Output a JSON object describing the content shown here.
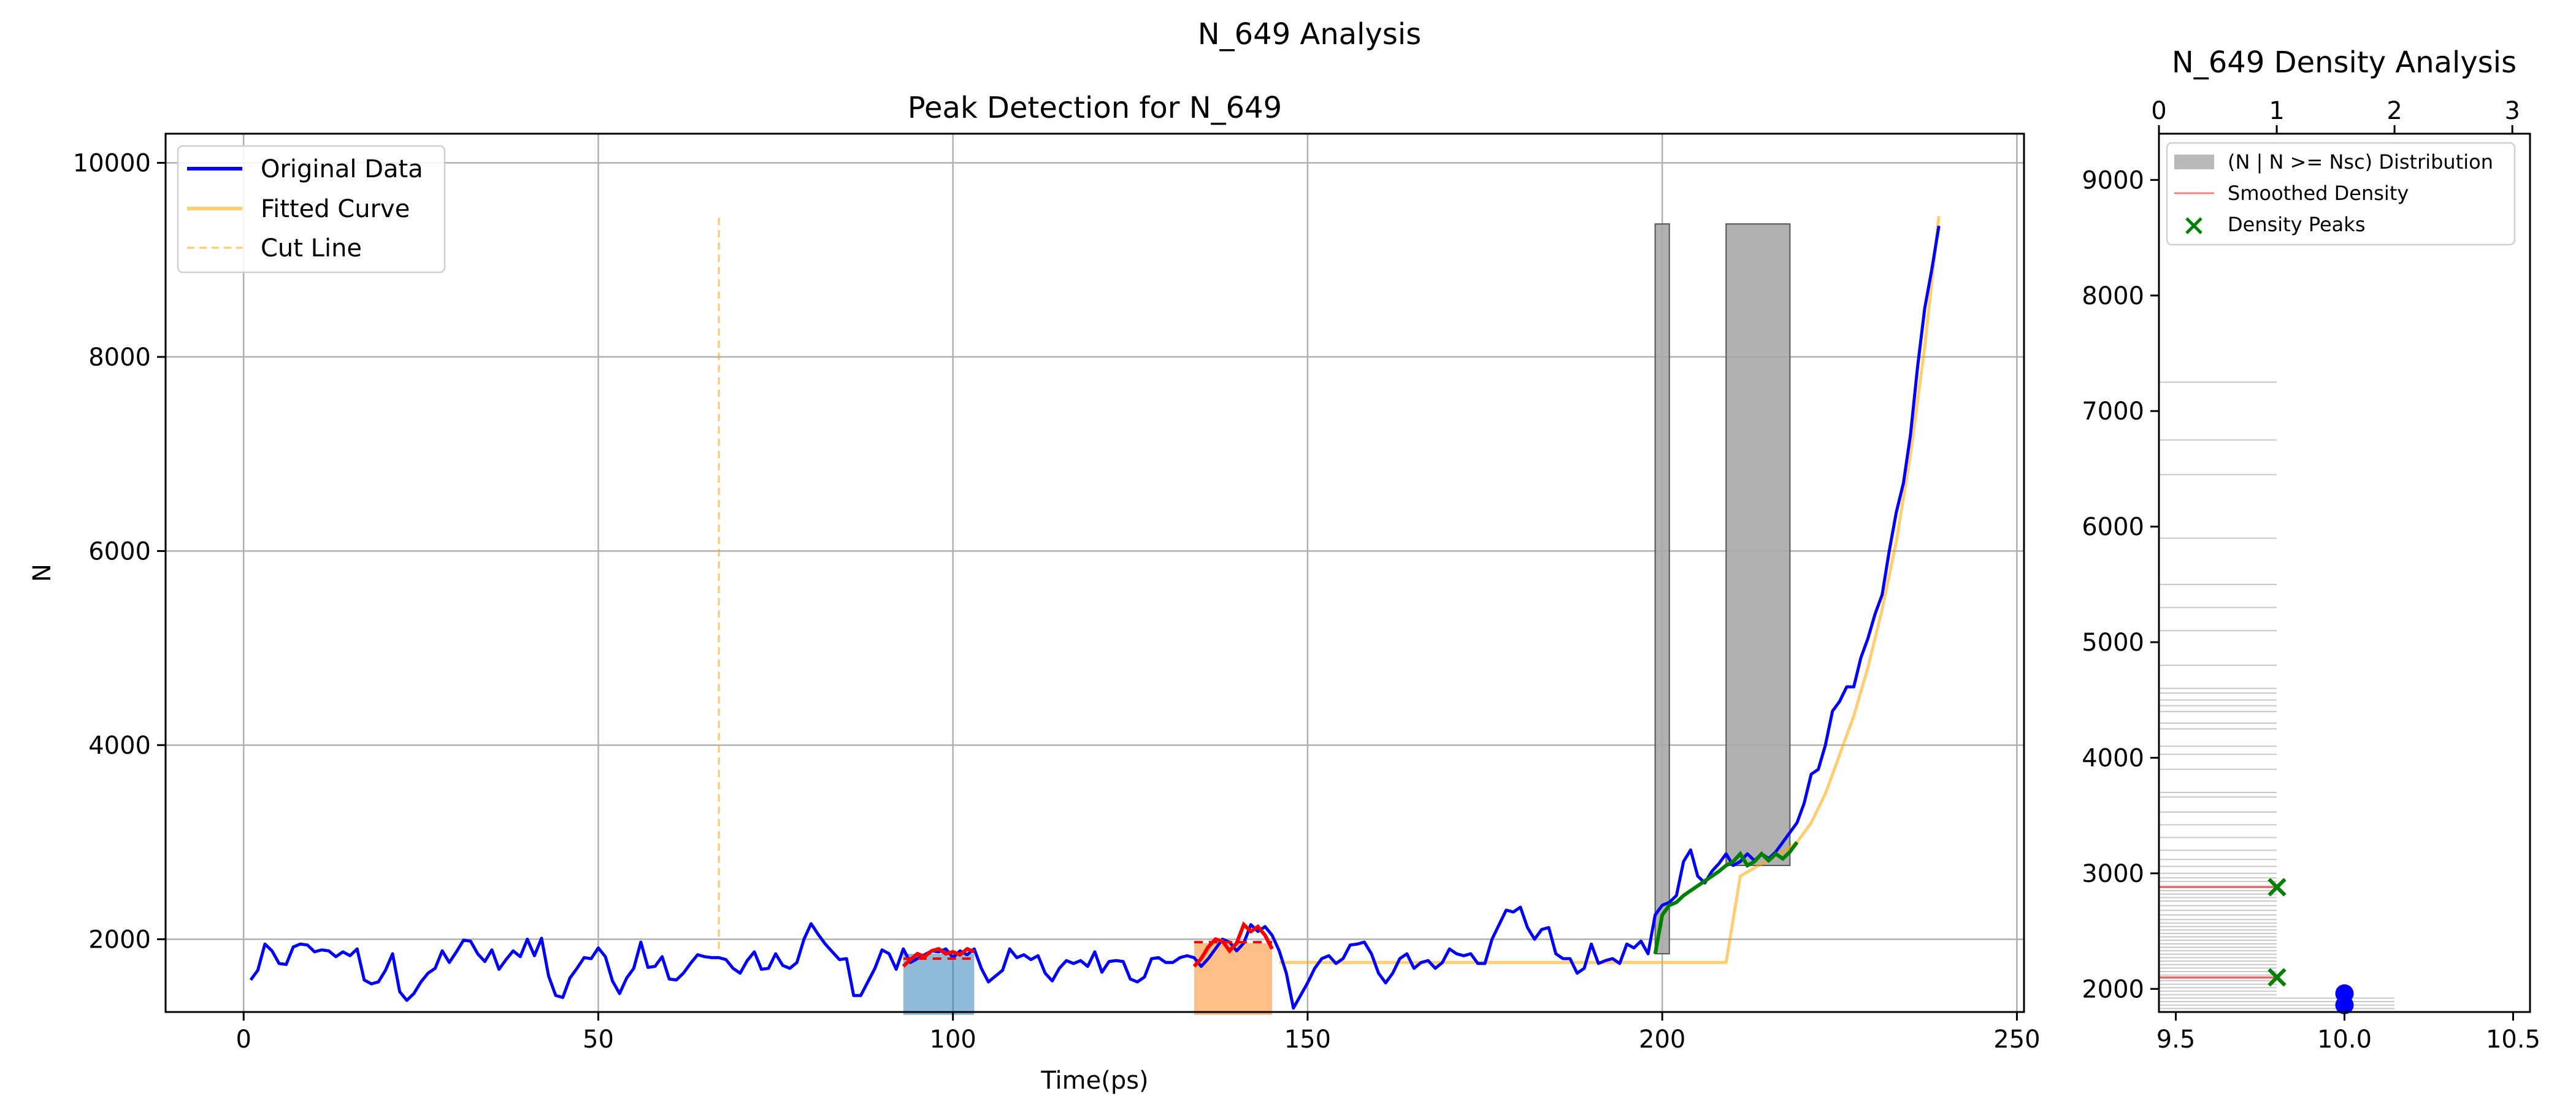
{
  "figure": {
    "suptitle": "N_649 Analysis"
  },
  "colors": {
    "original": "#0000ff",
    "fitted": "#ffa500",
    "cut": "#ffa500",
    "peak": "#ff0000",
    "rise": "#008000",
    "hist": "#a9a9a9",
    "shade1": "#1f77b4",
    "shade2": "#ff7f0e",
    "grid": "#b0b0b0"
  },
  "chart_data": [
    {
      "type": "line",
      "title": "Peak Detection for N_649",
      "xlabel": "Time(ps)",
      "ylabel": "N",
      "xlim": [
        -11,
        251
      ],
      "ylim": [
        1250,
        10300
      ],
      "xticks": [
        0,
        50,
        100,
        150,
        200,
        250
      ],
      "yticks": [
        2000,
        4000,
        6000,
        8000,
        10000
      ],
      "grid": true,
      "legend": {
        "placement": "upper-left",
        "entries": [
          "Original Data",
          "Fitted Curve",
          "Cut Line"
        ]
      },
      "series": [
        {
          "name": "Original Data",
          "x": [
            1,
            2,
            3,
            4,
            5,
            6,
            7,
            8,
            9,
            10,
            11,
            12,
            13,
            14,
            15,
            16,
            17,
            18,
            19,
            20,
            21,
            22,
            23,
            24,
            25,
            26,
            27,
            28,
            29,
            30,
            31,
            32,
            33,
            34,
            35,
            36,
            37,
            38,
            39,
            40,
            41,
            42,
            43,
            44,
            45,
            46,
            47,
            48,
            49,
            50,
            51,
            52,
            53,
            54,
            55,
            56,
            57,
            58,
            59,
            60,
            61,
            62,
            63,
            64,
            65,
            66,
            67,
            68,
            69,
            70,
            71,
            72,
            73,
            74,
            75,
            76,
            77,
            78,
            79,
            80,
            81,
            82,
            83,
            84,
            85,
            86,
            87,
            88,
            89,
            90,
            91,
            92,
            93,
            94,
            95,
            96,
            97,
            98,
            99,
            100,
            101,
            102,
            103,
            104,
            105,
            106,
            107,
            108,
            109,
            110,
            111,
            112,
            113,
            114,
            115,
            116,
            117,
            118,
            119,
            120,
            121,
            122,
            123,
            124,
            125,
            126,
            127,
            128,
            129,
            130,
            131,
            132,
            133,
            134,
            135,
            136,
            137,
            138,
            139,
            140,
            141,
            142,
            143,
            144,
            145,
            146,
            147,
            148,
            149,
            150,
            151,
            152,
            153,
            154,
            155,
            156,
            157,
            158,
            159,
            160,
            161,
            162,
            163,
            164,
            165,
            166,
            167,
            168,
            169,
            170,
            171,
            172,
            173,
            174,
            175,
            176,
            177,
            178,
            179,
            180,
            181,
            182,
            183,
            184,
            185,
            186,
            187,
            188,
            189,
            190,
            191,
            192,
            193,
            194,
            195,
            196,
            197,
            198,
            199,
            200,
            201,
            202,
            203,
            204,
            205,
            206,
            207,
            208,
            209,
            210,
            211,
            212,
            213,
            214,
            215,
            216,
            217,
            218,
            219,
            220,
            221,
            222,
            223,
            224,
            225,
            226,
            227,
            228,
            229,
            230,
            231,
            232,
            233,
            234,
            235,
            236,
            237,
            238,
            239
          ],
          "y": [
            1580,
            1680,
            1950,
            1880,
            1750,
            1740,
            1920,
            1950,
            1940,
            1870,
            1890,
            1880,
            1820,
            1870,
            1830,
            1900,
            1580,
            1540,
            1560,
            1680,
            1850,
            1460,
            1370,
            1440,
            1560,
            1650,
            1700,
            1880,
            1760,
            1870,
            1990,
            1980,
            1850,
            1770,
            1890,
            1690,
            1790,
            1880,
            1820,
            2000,
            1830,
            2010,
            1620,
            1420,
            1400,
            1600,
            1700,
            1810,
            1800,
            1910,
            1820,
            1570,
            1440,
            1600,
            1700,
            1970,
            1710,
            1720,
            1820,
            1590,
            1580,
            1650,
            1750,
            1840,
            1820,
            1810,
            1810,
            1790,
            1700,
            1650,
            1780,
            1870,
            1690,
            1700,
            1850,
            1730,
            1700,
            1760,
            2000,
            2160,
            2050,
            1950,
            1870,
            1790,
            1800,
            1420,
            1420,
            1560,
            1700,
            1890,
            1850,
            1690,
            1900,
            1760,
            1800,
            1840,
            1880,
            1870,
            1900,
            1810,
            1880,
            1840,
            1900,
            1700,
            1560,
            1620,
            1680,
            1900,
            1810,
            1840,
            1790,
            1830,
            1650,
            1570,
            1700,
            1780,
            1750,
            1780,
            1720,
            1870,
            1660,
            1770,
            1780,
            1770,
            1590,
            1560,
            1610,
            1800,
            1810,
            1760,
            1760,
            1810,
            1830,
            1810,
            1720,
            1800,
            1900,
            2000,
            1970,
            1880,
            1960,
            2150,
            2080,
            2130,
            2040,
            1880,
            1650,
            1290,
            1420,
            1550,
            1700,
            1800,
            1830,
            1750,
            1800,
            1940,
            1950,
            1970,
            1850,
            1650,
            1550,
            1650,
            1800,
            1850,
            1700,
            1760,
            1780,
            1700,
            1760,
            1900,
            1850,
            1830,
            1850,
            1750,
            1750,
            2000,
            2150,
            2300,
            2280,
            2330,
            2120,
            2000,
            2100,
            2120,
            1850,
            1800,
            1800,
            1650,
            1700,
            1950,
            1750,
            1780,
            1800,
            1750,
            1950,
            1910,
            1980,
            1850,
            2250,
            2350,
            2380,
            2450,
            2800,
            2920,
            2650,
            2580,
            2700,
            2780,
            2880,
            2760,
            2800,
            2880,
            2810,
            2880,
            2830,
            2900,
            3000,
            3100,
            3200,
            3400,
            3700,
            3750,
            4000,
            4350,
            4450,
            4600,
            4600,
            4900,
            5100,
            5350,
            5550,
            6000,
            6400,
            6700,
            7200,
            7900,
            8500,
            8900,
            9350
          ]
        },
        {
          "name": "Fitted Curve",
          "x": [
            146,
            209,
            211,
            215,
            217,
            219,
            221,
            223,
            225,
            227,
            229,
            231,
            233,
            235,
            237,
            239
          ],
          "y": [
            1760,
            1760,
            2650,
            2820,
            2900,
            3000,
            3200,
            3500,
            3900,
            4300,
            4800,
            5400,
            6100,
            7000,
            8100,
            9450
          ]
        },
        {
          "name": "Cut Line",
          "x": [
            67,
            67
          ],
          "y": [
            1900,
            9450
          ]
        },
        {
          "name": "",
          "role": "detected peak 1",
          "x": [
            93,
            94,
            95,
            96,
            97,
            98,
            99,
            100,
            101,
            102,
            103
          ],
          "y": [
            1720,
            1790,
            1850,
            1820,
            1880,
            1900,
            1850,
            1870,
            1840,
            1900,
            1870
          ],
          "level": 1800
        },
        {
          "name": "",
          "role": "detected peak 2",
          "x": [
            134,
            135,
            136,
            137,
            138,
            139,
            140,
            141,
            142,
            143,
            144,
            145
          ],
          "y": [
            1720,
            1800,
            1920,
            2000,
            1980,
            1880,
            1960,
            2150,
            2080,
            2130,
            2040,
            1900
          ],
          "level": 1970
        },
        {
          "name": "",
          "role": "rise segment",
          "x": [
            199,
            200,
            201,
            202,
            203,
            204,
            205,
            206,
            207,
            208,
            209,
            210,
            211,
            212,
            213,
            214,
            215,
            216,
            217,
            218,
            219
          ],
          "y": [
            1850,
            2250,
            2350,
            2380,
            2450,
            2500,
            2550,
            2600,
            2650,
            2700,
            2760,
            2800,
            2880,
            2760,
            2800,
            2880,
            2810,
            2880,
            2830,
            2900,
            3000
          ]
        }
      ],
      "spans": [
        {
          "role": "peak region 1",
          "x0": 93,
          "x1": 103,
          "y0": 1220,
          "y1": 1850
        },
        {
          "role": "peak region 2",
          "x0": 134,
          "x1": 145,
          "y0": 1220,
          "y1": 1960
        }
      ],
      "bars": [
        {
          "x0": 199,
          "x1": 201,
          "y0": 1850,
          "y1": 9370
        },
        {
          "x0": 209,
          "x1": 218,
          "y0": 2760,
          "y1": 9370
        }
      ]
    },
    {
      "type": "histogram",
      "title": "N_649 Density Analysis",
      "xlim": [
        9.45,
        10.55
      ],
      "xticks": [
        9.5,
        10.0,
        10.5
      ],
      "top_xlim": [
        0,
        3.15
      ],
      "top_xticks": [
        0,
        1,
        2,
        3
      ],
      "ylim": [
        1800,
        9400
      ],
      "yticks": [
        2000,
        3000,
        4000,
        5000,
        6000,
        7000,
        8000,
        9000
      ],
      "legend": {
        "placement": "upper-left",
        "entries": [
          "(N | N >= Nsc) Distribution",
          "Smoothed Density",
          "Density Peaks"
        ]
      },
      "hist_lines": [
        1830,
        1860,
        1890,
        1920,
        1950,
        1980,
        2010,
        2040,
        2070,
        2090,
        2120,
        2150,
        2180,
        2210,
        2240,
        2270,
        2300,
        2330,
        2360,
        2390,
        2420,
        2450,
        2480,
        2510,
        2540,
        2570,
        2600,
        2640,
        2680,
        2720,
        2760,
        2790,
        2820,
        2850,
        2890,
        2930,
        2960,
        3000,
        3060,
        3120,
        3200,
        3310,
        3420,
        3530,
        3660,
        3700,
        3900,
        4030,
        4100,
        4250,
        4300,
        4400,
        4450,
        4500,
        4560,
        4600,
        4800,
        5100,
        5300,
        5500,
        5900,
        6450,
        6750,
        7250
      ],
      "smoothed_density_peaks": [
        2880,
        2100
      ],
      "density_peaks": [
        {
          "x": 9.8,
          "y": 2880
        },
        {
          "x": 9.8,
          "y": 2100
        }
      ],
      "markers": [
        {
          "x": 10.0,
          "y": 1960
        },
        {
          "x": 10.0,
          "y": 1860
        }
      ]
    }
  ]
}
